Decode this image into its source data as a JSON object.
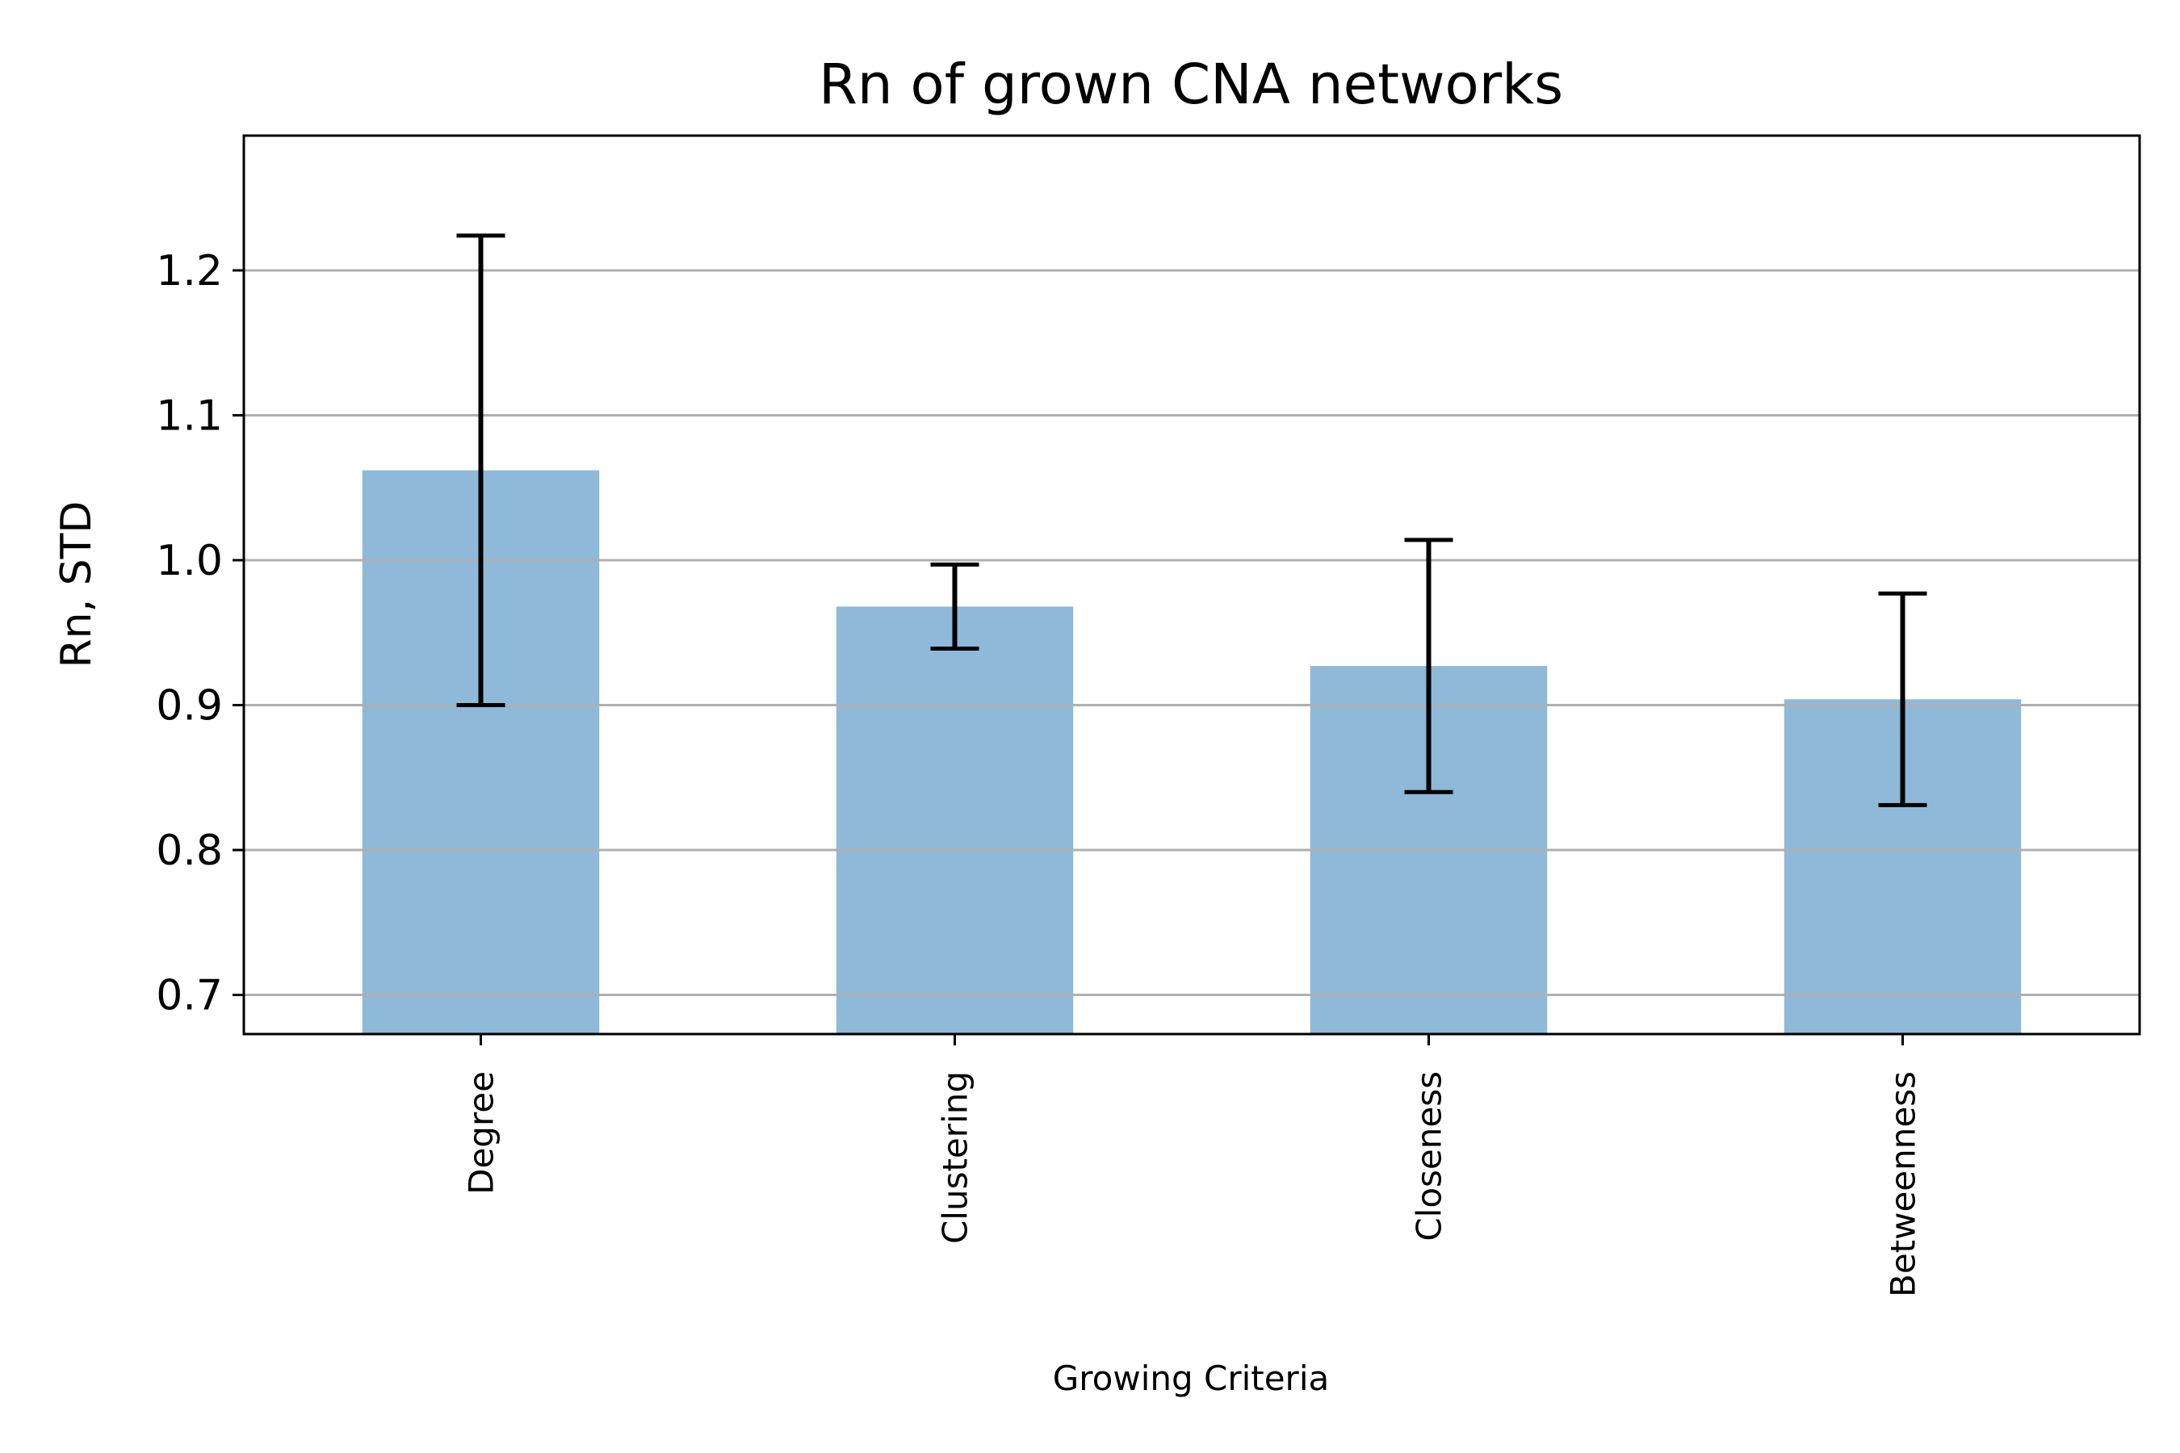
{
  "chart_data": {
    "type": "bar",
    "title": "Rn of grown CNA networks",
    "xlabel": "Growing Criteria",
    "ylabel": "Rn, STD",
    "categories": [
      "Degree",
      "Clustering",
      "Closeness",
      "Betweenness"
    ],
    "values": [
      1.062,
      0.968,
      0.927,
      0.904
    ],
    "errors": [
      0.162,
      0.029,
      0.087,
      0.073
    ],
    "ylim": [
      0.673,
      1.293
    ],
    "yticks": [
      0.7,
      0.8,
      0.9,
      1.0,
      1.1,
      1.2
    ],
    "ytick_labels": [
      "0.7",
      "0.8",
      "0.9",
      "1.0",
      "1.1",
      "1.2"
    ],
    "grid": "y",
    "bar_color": "#8fb9d9",
    "error_color": "#000000",
    "grid_color": "#b0b0b0"
  }
}
